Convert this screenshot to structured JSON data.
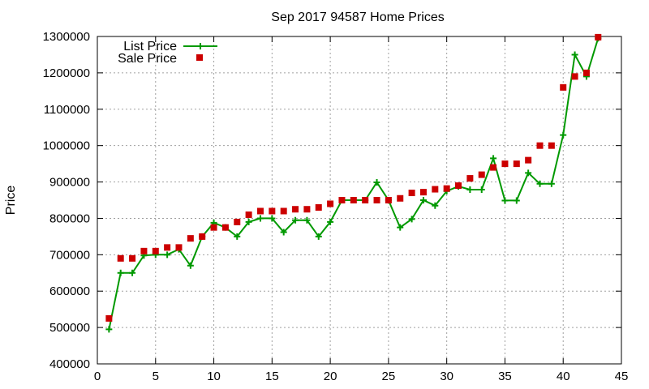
{
  "chart_data": {
    "type": "line",
    "title": "Sep 2017 94587 Home Prices",
    "xlabel": "",
    "ylabel": "Price",
    "xlim": [
      0,
      45
    ],
    "ylim": [
      400000,
      1300000
    ],
    "xticks": [
      0,
      5,
      10,
      15,
      20,
      25,
      30,
      35,
      40,
      45
    ],
    "yticks": [
      400000,
      500000,
      600000,
      700000,
      800000,
      900000,
      1000000,
      1100000,
      1200000,
      1300000
    ],
    "grid": true,
    "legend_position": "top-left",
    "series": [
      {
        "name": "List Price",
        "style": "line-with-plus-markers",
        "color": "#009900",
        "x": [
          1,
          2,
          3,
          4,
          5,
          6,
          7,
          8,
          9,
          10,
          11,
          12,
          13,
          14,
          15,
          16,
          17,
          18,
          19,
          20,
          21,
          22,
          23,
          24,
          25,
          26,
          27,
          28,
          29,
          30,
          31,
          32,
          33,
          34,
          35,
          36,
          37,
          38,
          39,
          40,
          41,
          42,
          43
        ],
        "values": [
          495000,
          650000,
          650000,
          698000,
          700000,
          700000,
          715000,
          670000,
          750000,
          788000,
          775000,
          750000,
          790000,
          800000,
          800000,
          762000,
          795000,
          795000,
          750000,
          790000,
          850000,
          850000,
          850000,
          899000,
          850000,
          775000,
          798000,
          850000,
          835000,
          875000,
          888000,
          879000,
          879000,
          965000,
          849000,
          849000,
          925000,
          895000,
          895000,
          1029000,
          1250000,
          1190000,
          1295000
        ]
      },
      {
        "name": "Sale Price",
        "style": "square-markers",
        "color": "#cc0000",
        "x": [
          1,
          2,
          3,
          4,
          5,
          6,
          7,
          8,
          9,
          10,
          11,
          12,
          13,
          14,
          15,
          16,
          17,
          18,
          19,
          20,
          21,
          22,
          23,
          24,
          25,
          26,
          27,
          28,
          29,
          30,
          31,
          32,
          33,
          34,
          35,
          36,
          37,
          38,
          39,
          40,
          41,
          42,
          43
        ],
        "values": [
          525000,
          690000,
          690000,
          710000,
          710000,
          720000,
          720000,
          745000,
          750000,
          775000,
          775000,
          790000,
          810000,
          820000,
          820000,
          820000,
          825000,
          825000,
          830000,
          840000,
          850000,
          850000,
          850000,
          850000,
          850000,
          855000,
          870000,
          872000,
          880000,
          882000,
          890000,
          910000,
          920000,
          940000,
          950000,
          950000,
          960000,
          1000000,
          1000000,
          1160000,
          1190000,
          1200000,
          1298000
        ]
      }
    ]
  }
}
